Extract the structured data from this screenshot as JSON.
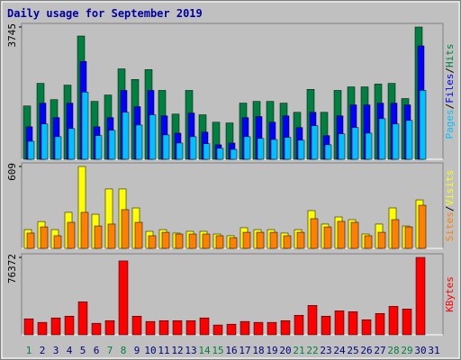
{
  "chart_data": [
    {
      "type": "bar",
      "title": "Daily usage for September 2019",
      "legend_separator": "/",
      "ylim": [
        0,
        3745
      ],
      "yticks": [
        3745
      ],
      "series": [
        {
          "name": "Hits",
          "color": "#008040",
          "values": [
            1510,
            2150,
            1690,
            2100,
            3490,
            1640,
            1820,
            2560,
            2260,
            2540,
            1950,
            1280,
            1950,
            1260,
            1050,
            1030,
            1590,
            1640,
            1640,
            1590,
            1330,
            1980,
            1330,
            1950,
            2050,
            2050,
            2130,
            2150,
            1720,
            3745,
            0
          ]
        },
        {
          "name": "Files",
          "color": "#0000ff",
          "values": [
            920,
            1590,
            1180,
            1590,
            2770,
            920,
            1180,
            1950,
            1490,
            1950,
            1230,
            740,
            1310,
            770,
            410,
            460,
            1180,
            1210,
            1050,
            1230,
            900,
            1330,
            670,
            1230,
            1540,
            1540,
            1590,
            1590,
            1540,
            3210,
            0
          ]
        },
        {
          "name": "Pages",
          "color": "#00c0ff",
          "values": [
            510,
            1000,
            640,
            870,
            1900,
            670,
            820,
            1330,
            970,
            1260,
            690,
            460,
            640,
            440,
            310,
            280,
            640,
            590,
            560,
            620,
            540,
            950,
            410,
            720,
            900,
            740,
            1150,
            1000,
            1100,
            1950,
            0
          ]
        }
      ]
    },
    {
      "type": "bar",
      "legend_separator": "/",
      "ylim": [
        0,
        609
      ],
      "yticks": [
        609
      ],
      "series": [
        {
          "name": "Visits",
          "color": "#ffff00",
          "values": [
            140,
            200,
            140,
            268,
            609,
            254,
            442,
            442,
            301,
            127,
            140,
            114,
            127,
            127,
            107,
            94,
            154,
            140,
            140,
            114,
            140,
            281,
            181,
            234,
            214,
            107,
            181,
            301,
            167,
            361,
            0
          ]
        },
        {
          "name": "Sites",
          "color": "#ff8000",
          "values": [
            114,
            160,
            94,
            194,
            268,
            167,
            181,
            288,
            194,
            94,
            120,
            107,
            107,
            107,
            94,
            80,
            120,
            120,
            120,
            94,
            120,
            221,
            160,
            201,
            194,
            94,
            120,
            214,
            160,
            321,
            0
          ]
        }
      ]
    },
    {
      "type": "bar",
      "ylim": [
        0,
        76372
      ],
      "yticks": [
        76372
      ],
      "categories": [
        "1",
        "2",
        "3",
        "4",
        "5",
        "6",
        "7",
        "8",
        "9",
        "10",
        "11",
        "12",
        "13",
        "14",
        "15",
        "16",
        "17",
        "18",
        "19",
        "20",
        "21",
        "22",
        "23",
        "24",
        "25",
        "26",
        "27",
        "28",
        "29",
        "30",
        "31"
      ],
      "category_colors": [
        "#008040",
        "#000080",
        "#000080",
        "#000080",
        "#000080",
        "#000080",
        "#008040",
        "#008040",
        "#000080",
        "#000080",
        "#000080",
        "#000080",
        "#000080",
        "#008040",
        "#008040",
        "#000080",
        "#000080",
        "#000080",
        "#000080",
        "#000080",
        "#008040",
        "#008040",
        "#000080",
        "#000080",
        "#000080",
        "#000080",
        "#000080",
        "#008040",
        "#008040",
        "#000080",
        "#000080"
      ],
      "series": [
        {
          "name": "KBytes",
          "color": "#ff0000",
          "values": [
            15800,
            12300,
            16700,
            18400,
            32500,
            11400,
            14000,
            72900,
            18400,
            13200,
            14000,
            14000,
            14000,
            16700,
            9700,
            10500,
            13200,
            12300,
            12300,
            14000,
            19300,
            29000,
            18400,
            23700,
            22800,
            14900,
            21100,
            28100,
            25500,
            76372,
            0
          ]
        }
      ]
    }
  ]
}
